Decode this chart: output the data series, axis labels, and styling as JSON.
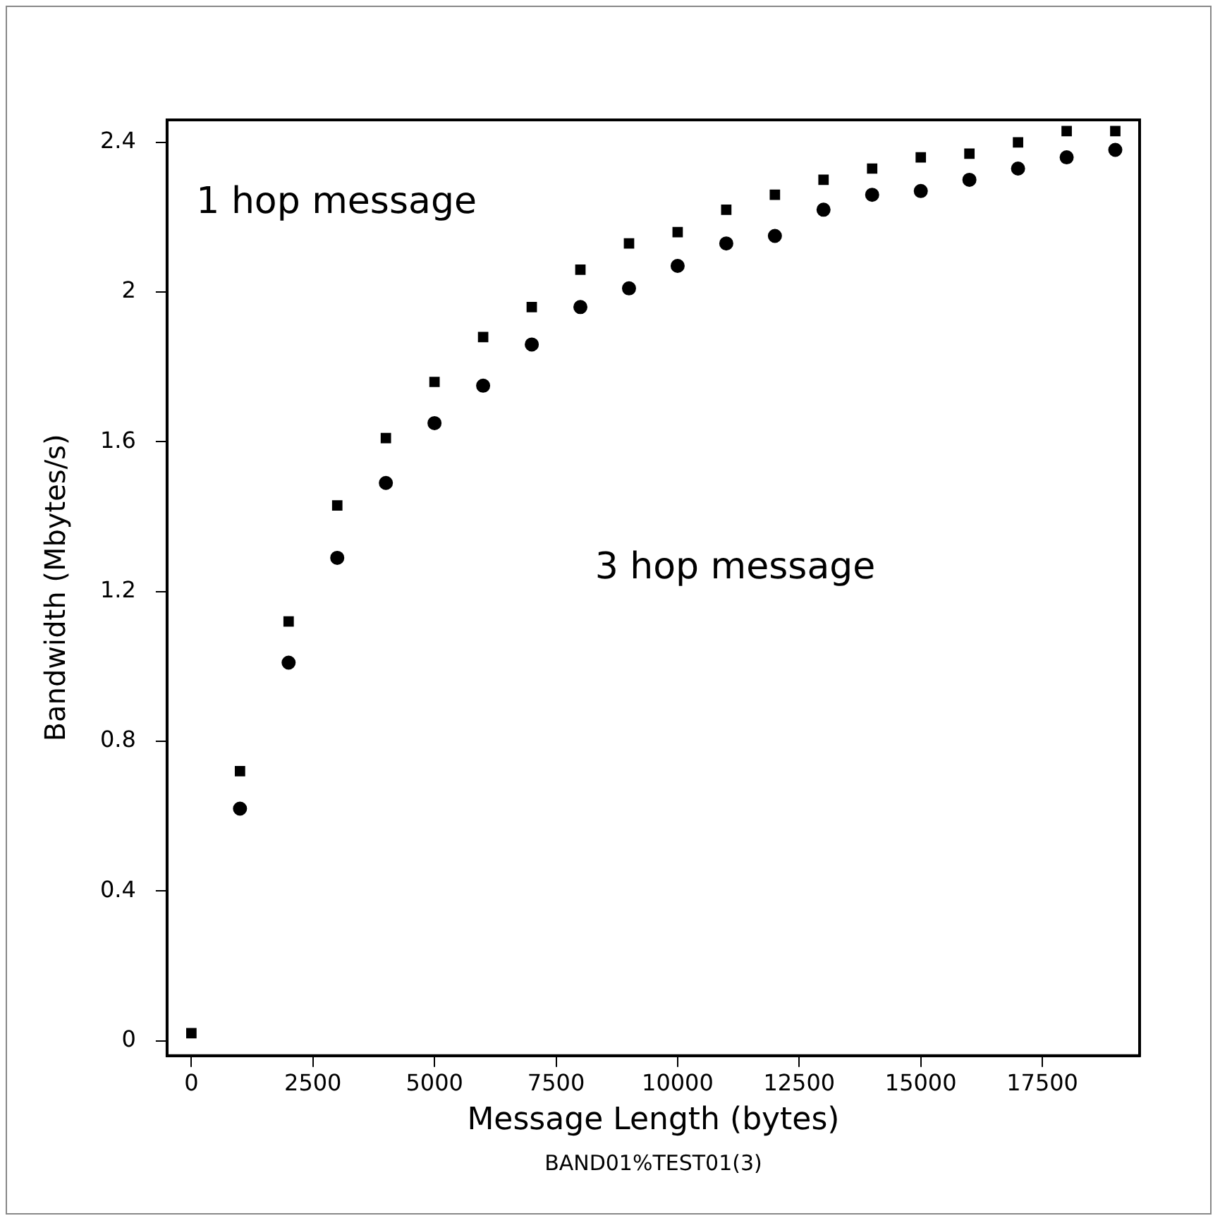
{
  "chart_data": {
    "type": "scatter",
    "xlabel": "Message Length (bytes)",
    "ylabel": "Bandwidth (Mbytes/s)",
    "annotations": [
      "1 hop message",
      "3 hop message",
      "BAND01%TEST01(3)"
    ],
    "series": [
      {
        "color": "#000000",
        "marker": "square",
        "x": [
          0,
          1000,
          2000,
          3000,
          4000,
          5000,
          6000,
          7000,
          8000,
          9000,
          10000,
          11000,
          12000,
          13000,
          14000,
          15000,
          16000,
          17000,
          18000,
          19000
        ],
        "values": [
          0.02,
          0.72,
          1.12,
          1.43,
          1.61,
          1.76,
          1.88,
          1.96,
          2.06,
          2.13,
          2.16,
          2.22,
          2.26,
          2.3,
          2.33,
          2.36,
          2.37,
          2.4,
          2.43,
          2.43
        ]
      },
      {
        "color": "#000000",
        "marker": "circle",
        "x": [
          1000,
          2000,
          3000,
          4000,
          5000,
          6000,
          7000,
          8000,
          9000,
          10000,
          11000,
          12000,
          13000,
          14000,
          15000,
          16000,
          17000,
          18000,
          19000
        ],
        "values": [
          0.62,
          1.01,
          1.29,
          1.49,
          1.65,
          1.75,
          1.86,
          1.96,
          2.01,
          2.07,
          2.13,
          2.15,
          2.22,
          2.26,
          2.27,
          2.3,
          2.33,
          2.36,
          2.38
        ]
      }
    ],
    "xlim": [
      -500,
      19500
    ],
    "xticks": [
      0,
      2500,
      5000,
      7500,
      10000,
      12500,
      15000,
      17500
    ],
    "ylim": [
      -0.04,
      2.46
    ],
    "yticks": [
      0,
      0.4,
      0.8,
      1.2,
      1.6,
      2,
      2.4
    ],
    "grid": false,
    "legend": false
  }
}
